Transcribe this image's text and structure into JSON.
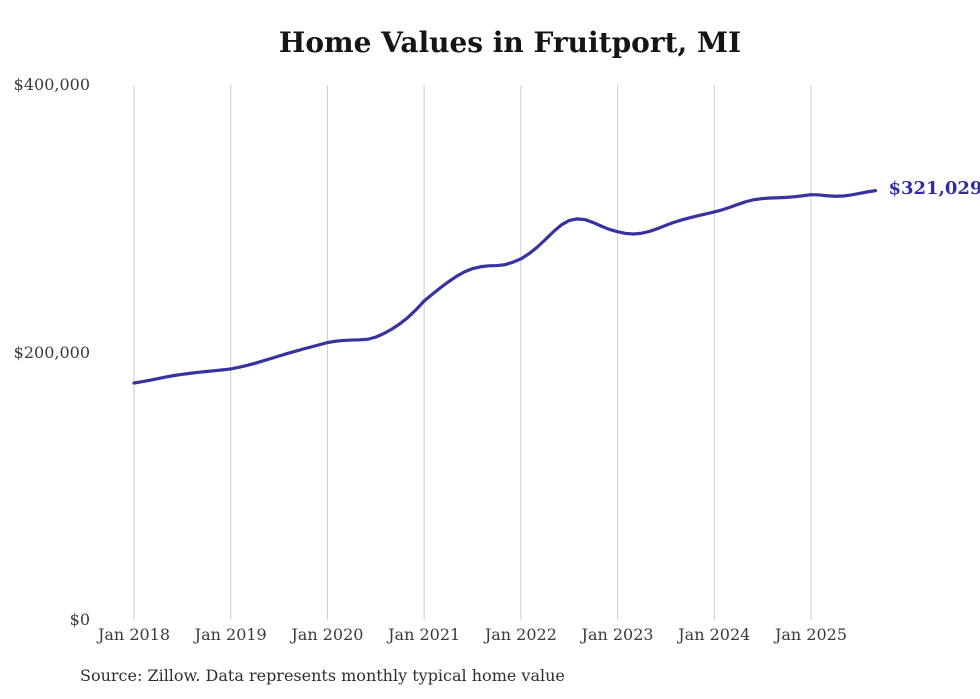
{
  "chart_data": {
    "type": "line",
    "title": "Home Values in Fruitport, MI",
    "xlabel": "",
    "ylabel": "",
    "ylim": [
      0,
      400000
    ],
    "grid": "vertical-year-lines-only",
    "legend": "none",
    "x": [
      "2018-01",
      "2018-02",
      "2018-03",
      "2018-04",
      "2018-05",
      "2018-06",
      "2018-07",
      "2018-08",
      "2018-09",
      "2018-10",
      "2018-11",
      "2018-12",
      "2019-01",
      "2019-02",
      "2019-03",
      "2019-04",
      "2019-05",
      "2019-06",
      "2019-07",
      "2019-08",
      "2019-09",
      "2019-10",
      "2019-11",
      "2019-12",
      "2020-01",
      "2020-02",
      "2020-03",
      "2020-04",
      "2020-05",
      "2020-06",
      "2020-07",
      "2020-08",
      "2020-09",
      "2020-10",
      "2020-11",
      "2020-12",
      "2021-01",
      "2021-02",
      "2021-03",
      "2021-04",
      "2021-05",
      "2021-06",
      "2021-07",
      "2021-08",
      "2021-09",
      "2021-10",
      "2021-11",
      "2021-12",
      "2022-01",
      "2022-02",
      "2022-03",
      "2022-04",
      "2022-05",
      "2022-06",
      "2022-07",
      "2022-08",
      "2022-09",
      "2022-10",
      "2022-11",
      "2022-12",
      "2023-01",
      "2023-02",
      "2023-03",
      "2023-04",
      "2023-05",
      "2023-06",
      "2023-07",
      "2023-08",
      "2023-09",
      "2023-10",
      "2023-11",
      "2023-12",
      "2024-01",
      "2024-02",
      "2024-03",
      "2024-04",
      "2024-05",
      "2024-06",
      "2024-07",
      "2024-08",
      "2024-09",
      "2024-10",
      "2024-11",
      "2024-12",
      "2025-01",
      "2025-02",
      "2025-03",
      "2025-04",
      "2025-05",
      "2025-06",
      "2025-07",
      "2025-08",
      "2025-09"
    ],
    "series": [
      {
        "name": "Monthly typical home value",
        "values": [
          177200,
          178200,
          179300,
          180500,
          181700,
          182800,
          183700,
          184500,
          185200,
          185800,
          186400,
          187000,
          187700,
          188900,
          190300,
          191900,
          193700,
          195500,
          197400,
          199200,
          200900,
          202600,
          204200,
          205800,
          207400,
          208400,
          209000,
          209300,
          209500,
          209900,
          211500,
          214200,
          217500,
          221500,
          226300,
          232000,
          238500,
          243500,
          248300,
          252800,
          256900,
          260300,
          262700,
          264100,
          264800,
          265000,
          265600,
          267500,
          270000,
          273800,
          278600,
          284200,
          290100,
          295300,
          298700,
          299900,
          299300,
          297100,
          294400,
          292000,
          290300,
          289000,
          288600,
          289200,
          290600,
          292700,
          295100,
          297300,
          299200,
          300800,
          302300,
          303700,
          305100,
          306700,
          308700,
          310900,
          312900,
          314300,
          315100,
          315500,
          315700,
          316000,
          316500,
          317200,
          318000,
          317800,
          317200,
          316800,
          317000,
          317800,
          318900,
          320100,
          321029
        ]
      }
    ],
    "yticks": [
      {
        "value": 0,
        "label": "$0"
      },
      {
        "value": 200000,
        "label": "$200,000"
      },
      {
        "value": 400000,
        "label": "$400,000"
      }
    ],
    "xticks": [
      {
        "month": "2018-01",
        "label": "Jan 2018"
      },
      {
        "month": "2019-01",
        "label": "Jan 2019"
      },
      {
        "month": "2020-01",
        "label": "Jan 2020"
      },
      {
        "month": "2021-01",
        "label": "Jan 2021"
      },
      {
        "month": "2022-01",
        "label": "Jan 2022"
      },
      {
        "month": "2023-01",
        "label": "Jan 2023"
      },
      {
        "month": "2024-01",
        "label": "Jan 2024"
      },
      {
        "month": "2025-01",
        "label": "Jan 2025"
      }
    ],
    "end_label": "$321,029",
    "source_note": "Source: Zillow. Data represents monthly typical home value",
    "colors": {
      "line": "#3632a0",
      "end_label": "#322da0",
      "grid": "#cccccc",
      "axis_text": "#3a3a3a",
      "title_text": "#151515",
      "background": "#ffffff"
    }
  }
}
